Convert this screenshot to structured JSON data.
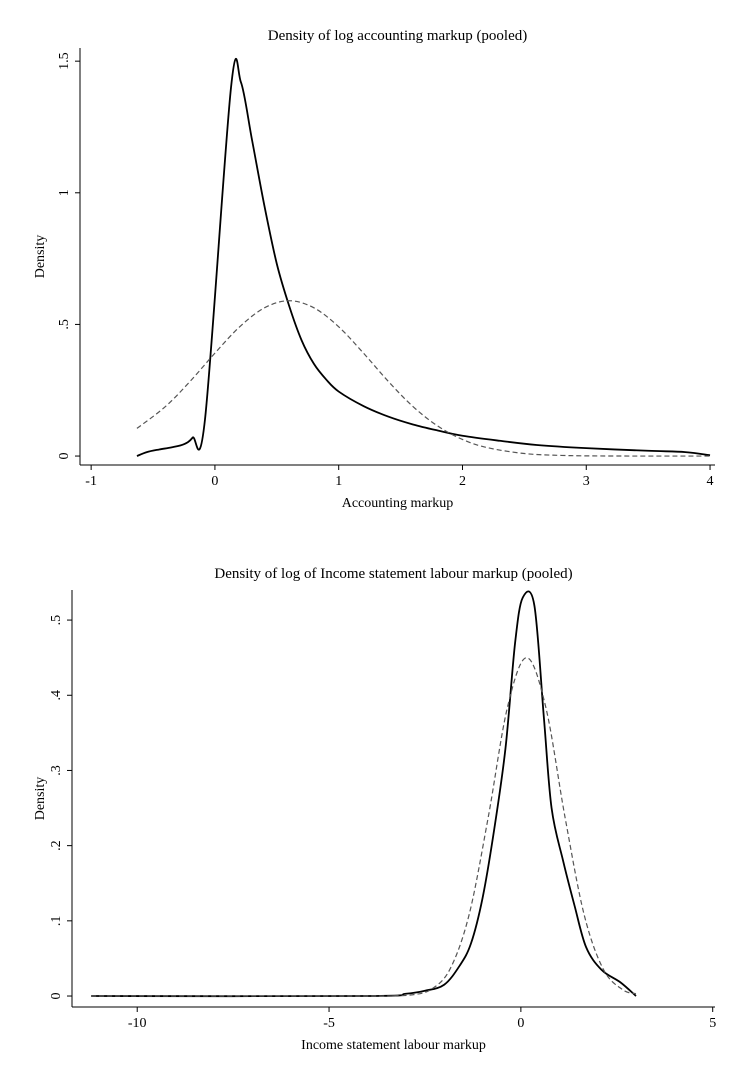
{
  "chart_data": [
    {
      "type": "line",
      "title": "Density of log accounting markup (pooled)",
      "x_label": "Accounting markup",
      "y_label": "Density",
      "xlim": [
        -1.09,
        4.04
      ],
      "ylim": [
        -0.034,
        1.55
      ],
      "xticks": [
        -1,
        0,
        1,
        2,
        3,
        4
      ],
      "yticks": [
        0,
        {
          "value": 0.5,
          "label": ".5"
        },
        1,
        1.5
      ],
      "series": [
        {
          "color": "#000000",
          "dash": false,
          "x": [
            -0.63,
            -0.55,
            -0.45,
            -0.35,
            -0.25,
            -0.18,
            -0.08,
            0.13,
            0.21,
            0.3,
            0.4,
            0.5,
            0.6,
            0.7,
            0.8,
            0.9,
            1.0,
            1.2,
            1.4,
            1.6,
            1.8,
            2.0,
            2.3,
            2.6,
            3.0,
            3.5,
            3.8,
            4.0
          ],
          "values": [
            0.0,
            0.015,
            0.025,
            0.033,
            0.045,
            0.07,
            0.14,
            1.4,
            1.42,
            1.2,
            0.95,
            0.73,
            0.57,
            0.44,
            0.35,
            0.29,
            0.245,
            0.19,
            0.15,
            0.12,
            0.097,
            0.077,
            0.058,
            0.042,
            0.03,
            0.02,
            0.015,
            0.003
          ]
        },
        {
          "color": "#555555",
          "dash": true,
          "x": [
            -0.63,
            -0.4,
            -0.2,
            0.0,
            0.2,
            0.4,
            0.6,
            0.8,
            1.0,
            1.2,
            1.4,
            1.6,
            1.8,
            2.0,
            2.2,
            2.5,
            2.8,
            3.2,
            4.0
          ],
          "values": [
            0.105,
            0.188,
            0.284,
            0.391,
            0.491,
            0.563,
            0.59,
            0.563,
            0.491,
            0.391,
            0.284,
            0.188,
            0.114,
            0.063,
            0.032,
            0.0096,
            0.0024,
            0.0002,
            0.0
          ]
        }
      ]
    },
    {
      "type": "line",
      "title": "Density of log of Income statement labour markup (pooled)",
      "x_label": "Income statement labour markup",
      "y_label": "Density",
      "xlim": [
        -11.7,
        5.06
      ],
      "ylim": [
        -0.0146,
        0.54
      ],
      "xticks": [
        -10,
        -5,
        0,
        5
      ],
      "yticks": [
        0,
        {
          "value": 0.1,
          "label": ".1"
        },
        {
          "value": 0.2,
          "label": ".2"
        },
        {
          "value": 0.3,
          "label": ".3"
        },
        {
          "value": 0.4,
          "label": ".4"
        },
        {
          "value": 0.5,
          "label": ".5"
        }
      ],
      "series": [
        {
          "color": "#000000",
          "dash": false,
          "x": [
            -11.2,
            -4.0,
            -3.0,
            -2.5,
            -2.0,
            -1.6,
            -1.3,
            -1.0,
            -0.7,
            -0.4,
            -0.15,
            0.05,
            0.35,
            0.6,
            0.8,
            1.1,
            1.4,
            1.7,
            2.1,
            2.6,
            3.0
          ],
          "values": [
            0.0,
            0.0,
            0.003,
            0.007,
            0.015,
            0.04,
            0.07,
            0.13,
            0.22,
            0.33,
            0.47,
            0.53,
            0.52,
            0.37,
            0.25,
            0.18,
            0.12,
            0.065,
            0.035,
            0.018,
            0.0
          ]
        },
        {
          "color": "#555555",
          "dash": true,
          "x": [
            -11.2,
            -4.0,
            -3.35,
            -2.85,
            -2.35,
            -1.85,
            -1.35,
            -0.85,
            -0.35,
            0.15,
            0.65,
            1.15,
            1.65,
            2.15,
            2.65,
            3.0
          ],
          "values": [
            0.0,
            0.0,
            0.0004,
            0.0015,
            0.0085,
            0.0355,
            0.108,
            0.238,
            0.384,
            0.45,
            0.384,
            0.238,
            0.108,
            0.0355,
            0.0085,
            0.003
          ]
        }
      ]
    }
  ]
}
